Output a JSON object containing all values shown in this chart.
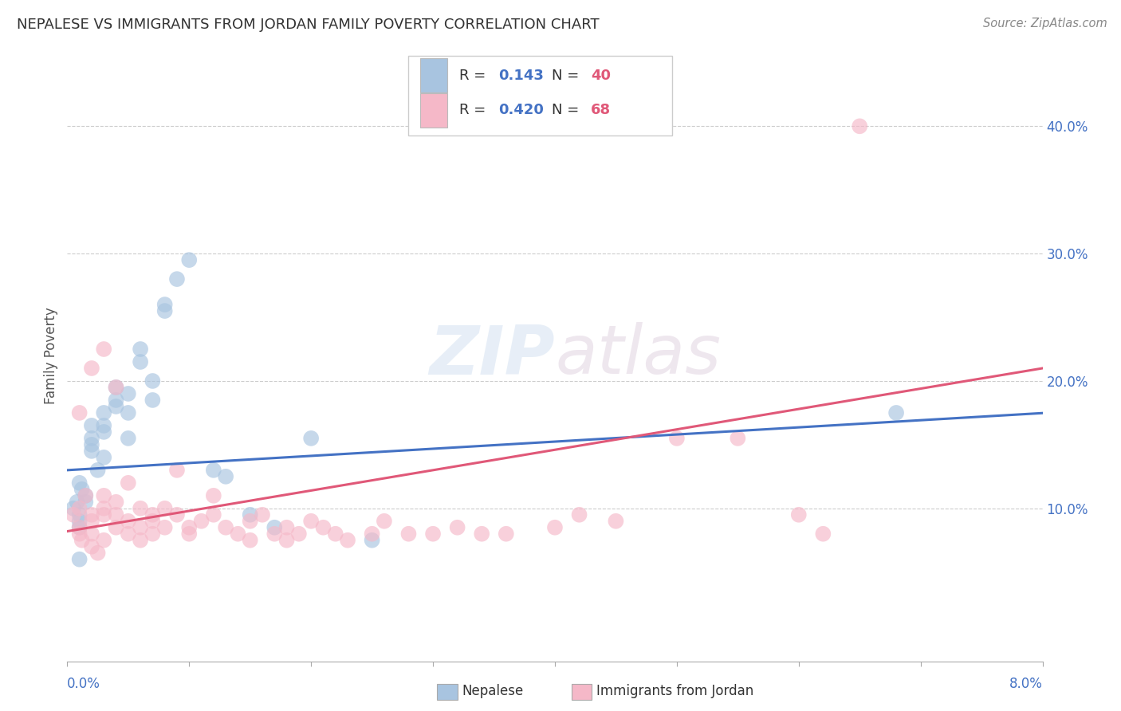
{
  "title": "NEPALESE VS IMMIGRANTS FROM JORDAN FAMILY POVERTY CORRELATION CHART",
  "source": "Source: ZipAtlas.com",
  "ylabel": "Family Poverty",
  "right_yticks": [
    "10.0%",
    "20.0%",
    "30.0%",
    "40.0%"
  ],
  "right_ytick_vals": [
    0.1,
    0.2,
    0.3,
    0.4
  ],
  "legend1_r": "0.143",
  "legend1_n": "40",
  "legend2_r": "0.420",
  "legend2_n": "68",
  "legend1_color": "#a8c4e0",
  "legend2_color": "#f5b8c8",
  "line1_color": "#4472c4",
  "line2_color": "#e05878",
  "background_color": "#ffffff",
  "xlim": [
    0.0,
    0.08
  ],
  "ylim": [
    -0.02,
    0.46
  ],
  "nepalese_x": [
    0.0005,
    0.0008,
    0.001,
    0.001,
    0.001,
    0.001,
    0.0012,
    0.0015,
    0.0015,
    0.002,
    0.002,
    0.002,
    0.002,
    0.0025,
    0.003,
    0.003,
    0.003,
    0.003,
    0.004,
    0.004,
    0.004,
    0.005,
    0.005,
    0.005,
    0.006,
    0.006,
    0.007,
    0.007,
    0.008,
    0.008,
    0.009,
    0.01,
    0.012,
    0.013,
    0.015,
    0.017,
    0.02,
    0.025,
    0.068,
    0.001
  ],
  "nepalese_y": [
    0.1,
    0.105,
    0.12,
    0.095,
    0.09,
    0.085,
    0.115,
    0.11,
    0.105,
    0.155,
    0.15,
    0.165,
    0.145,
    0.13,
    0.16,
    0.165,
    0.175,
    0.14,
    0.18,
    0.185,
    0.195,
    0.175,
    0.19,
    0.155,
    0.215,
    0.225,
    0.2,
    0.185,
    0.255,
    0.26,
    0.28,
    0.295,
    0.13,
    0.125,
    0.095,
    0.085,
    0.155,
    0.075,
    0.175,
    0.06
  ],
  "jordan_x": [
    0.0005,
    0.001,
    0.001,
    0.001,
    0.0012,
    0.0015,
    0.002,
    0.002,
    0.002,
    0.002,
    0.0025,
    0.003,
    0.003,
    0.003,
    0.003,
    0.004,
    0.004,
    0.004,
    0.005,
    0.005,
    0.005,
    0.006,
    0.006,
    0.006,
    0.007,
    0.007,
    0.007,
    0.008,
    0.008,
    0.009,
    0.009,
    0.01,
    0.01,
    0.011,
    0.012,
    0.012,
    0.013,
    0.014,
    0.015,
    0.015,
    0.016,
    0.017,
    0.018,
    0.018,
    0.019,
    0.02,
    0.021,
    0.022,
    0.023,
    0.025,
    0.026,
    0.028,
    0.03,
    0.032,
    0.034,
    0.036,
    0.04,
    0.042,
    0.045,
    0.05,
    0.055,
    0.06,
    0.062,
    0.065,
    0.001,
    0.002,
    0.003,
    0.004
  ],
  "jordan_y": [
    0.095,
    0.1,
    0.085,
    0.08,
    0.075,
    0.11,
    0.09,
    0.08,
    0.07,
    0.095,
    0.065,
    0.095,
    0.1,
    0.11,
    0.075,
    0.085,
    0.095,
    0.105,
    0.08,
    0.09,
    0.12,
    0.1,
    0.085,
    0.075,
    0.09,
    0.08,
    0.095,
    0.1,
    0.085,
    0.095,
    0.13,
    0.085,
    0.08,
    0.09,
    0.095,
    0.11,
    0.085,
    0.08,
    0.09,
    0.075,
    0.095,
    0.08,
    0.085,
    0.075,
    0.08,
    0.09,
    0.085,
    0.08,
    0.075,
    0.08,
    0.09,
    0.08,
    0.08,
    0.085,
    0.08,
    0.08,
    0.085,
    0.095,
    0.09,
    0.155,
    0.155,
    0.095,
    0.08,
    0.4,
    0.175,
    0.21,
    0.225,
    0.195
  ]
}
